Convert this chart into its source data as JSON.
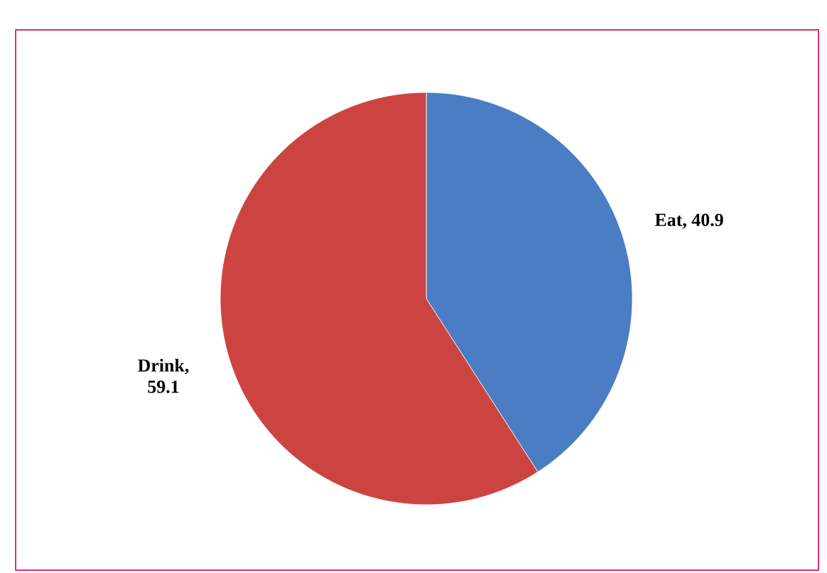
{
  "chart_data": {
    "type": "pie",
    "categories": [
      "Eat",
      "Drink"
    ],
    "values": [
      40.9,
      59.1
    ],
    "colors": [
      "#4a7dc4",
      "#cc4441"
    ],
    "value_labels": [
      ", 40.9",
      ", 59.1"
    ]
  }
}
